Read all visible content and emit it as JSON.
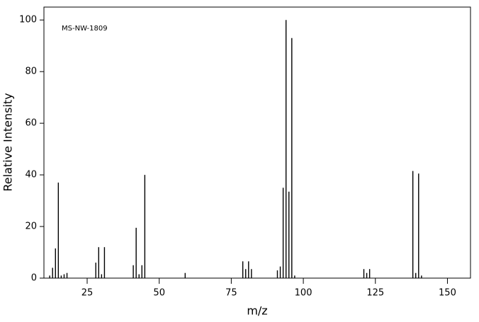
{
  "chart_data": {
    "type": "bar",
    "annotation": "MS-NW-1809",
    "x_label": "m/z",
    "y_label": "Relative Intensity",
    "x": [
      12,
      13,
      14,
      15,
      16,
      17,
      18,
      28,
      29,
      30,
      31,
      41,
      42,
      43,
      44,
      45,
      59,
      79,
      80,
      81,
      82,
      91,
      92,
      93,
      94,
      95,
      96,
      97,
      121,
      122,
      123,
      138,
      139,
      140,
      141
    ],
    "values": [
      1,
      4,
      11.5,
      37,
      1,
      1.5,
      2,
      6,
      12,
      1.5,
      12,
      5,
      19.5,
      1.5,
      5,
      40,
      2,
      6.5,
      3.5,
      6.5,
      3.5,
      3,
      4.5,
      35,
      100,
      33.5,
      93,
      1,
      3.5,
      2,
      3.5,
      41.5,
      2,
      40.5,
      1
    ],
    "color": "#000000",
    "xlim": [
      10,
      158
    ],
    "xticks": [
      25,
      50,
      75,
      100,
      125,
      150
    ],
    "ylim": [
      0,
      105
    ],
    "yticks": [
      0,
      20,
      40,
      60,
      80,
      100
    ]
  }
}
